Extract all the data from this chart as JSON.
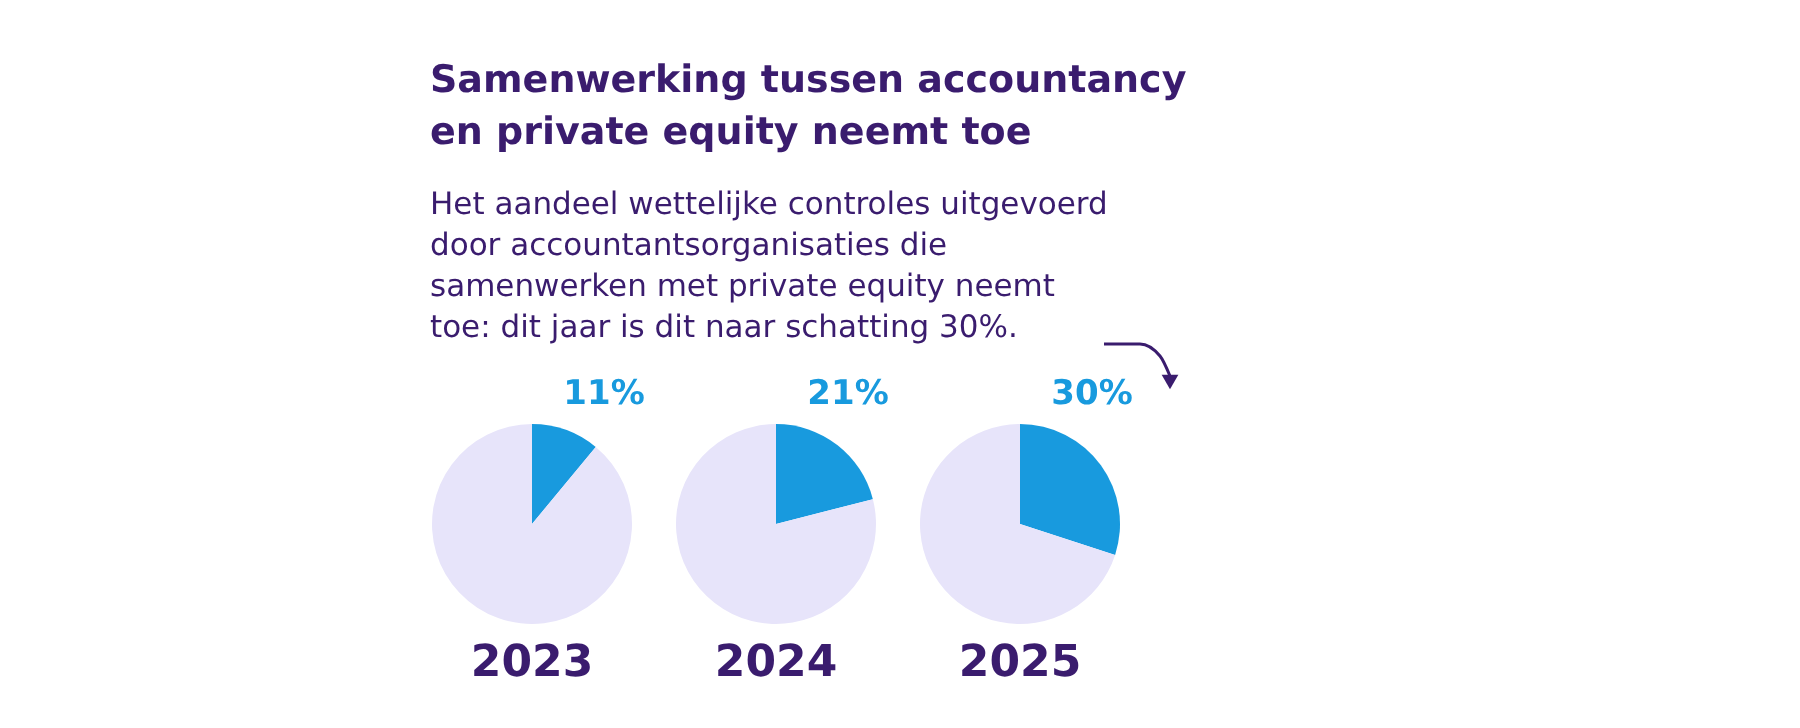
{
  "chart_data": [
    {
      "type": "pie",
      "title": "Samenwerking tussen accountancy\nen private equity neemt toe",
      "subtitle": "Het aandeel wettelijke controles uitgevoerd\ndoor accountantsorganisaties die\nsamenwerken met private equity neemt\ntoe: dit jaar is dit naar schatting 30%.",
      "xlabel": "2023",
      "categories": [
        null,
        null
      ],
      "values": [
        11,
        89
      ],
      "colors": [
        "#189ade",
        "#e7e4fa"
      ],
      "value_labels": [
        "11%",
        null
      ]
    },
    {
      "type": "pie",
      "xlabel": "2024",
      "categories": [
        null,
        null
      ],
      "values": [
        21,
        79
      ],
      "colors": [
        "#189ade",
        "#e7e4fa"
      ],
      "value_labels": [
        "21%",
        null
      ]
    },
    {
      "type": "pie",
      "xlabel": "2025",
      "categories": [
        null,
        null
      ],
      "values": [
        30,
        70
      ],
      "colors": [
        "#189ade",
        "#e7e4fa"
      ],
      "value_labels": [
        "30%",
        null
      ]
    }
  ]
}
